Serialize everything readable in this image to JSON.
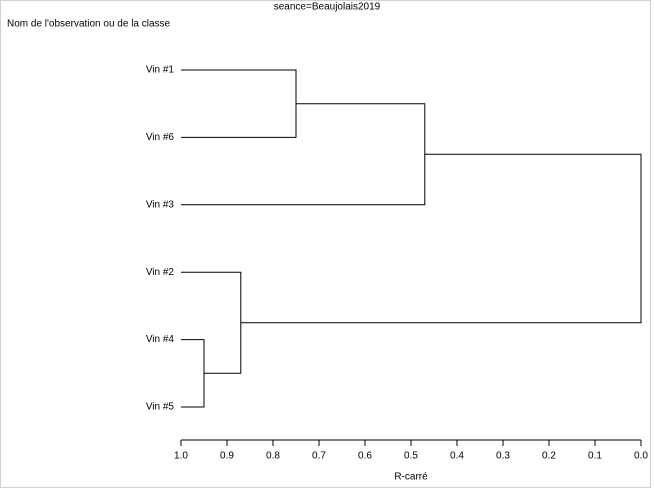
{
  "chart_data": {
    "type": "dendrogram",
    "title": "seance=Beaujolais2019",
    "y_label": "Nom de l'observation ou de la classe",
    "x_label": "R-carré",
    "leaves": [
      "Vin #1",
      "Vin #6",
      "Vin #3",
      "Vin #2",
      "Vin #4",
      "Vin #5"
    ],
    "merges": [
      {
        "join": [
          0,
          1
        ],
        "value": 0.75
      },
      {
        "join": [
          6,
          2
        ],
        "value": 0.47
      },
      {
        "join": [
          4,
          5
        ],
        "value": 0.95
      },
      {
        "join": [
          3,
          8
        ],
        "value": 0.87
      },
      {
        "join": [
          7,
          9
        ],
        "value": 0
      }
    ],
    "xlim": [
      1,
      0
    ],
    "xticks": [
      {
        "value": 1,
        "label": "1.0"
      },
      0.9,
      0.8,
      0.7,
      0.6,
      0.5,
      0.4,
      0.3,
      0.2,
      0.1,
      {
        "value": 0,
        "label": "0.0"
      }
    ],
    "color": "#000000"
  }
}
